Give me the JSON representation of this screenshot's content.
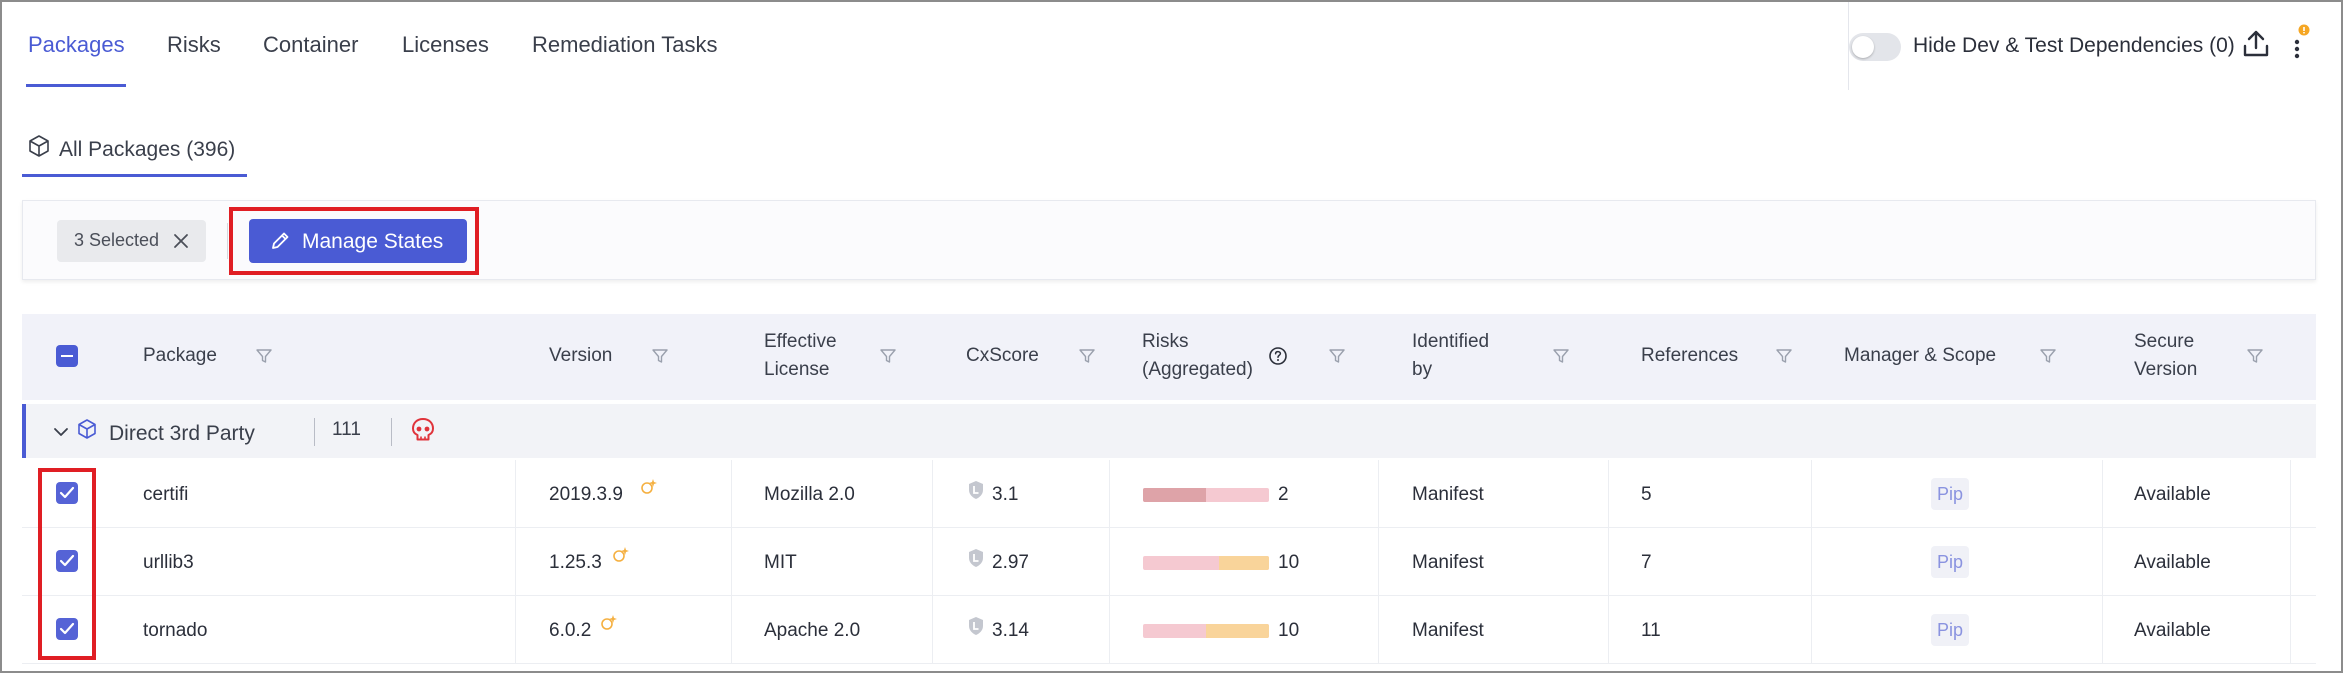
{
  "tabs": [
    "Packages",
    "Risks",
    "Container",
    "Licenses",
    "Remediation Tasks"
  ],
  "active_tab": "Packages",
  "toolbar": {
    "hide_dev_label": "Hide Dev & Test Dependencies (0)",
    "accent": "#4a5bd4",
    "notification_color": "#f5a623"
  },
  "sub_tab": {
    "label": "All Packages (396)",
    "icon": "cube-icon"
  },
  "selection": {
    "label": "3 Selected",
    "close_icon": "close-icon"
  },
  "manage_button": {
    "label": "Manage States",
    "icon": "pencil-icon"
  },
  "table": {
    "columns": [
      "Package",
      "Version",
      "Effective License",
      "CxScore",
      "Risks (Aggregated)",
      "Identified by",
      "References",
      "Manager & Scope",
      "Secure Version"
    ],
    "header_lines": {
      "package": "Package",
      "version": "Version",
      "license_1": "Effective",
      "license_2": "License",
      "cxscore": "CxScore",
      "risks_1": "Risks",
      "risks_2": "(Aggregated)",
      "identified_1": "Identified",
      "identified_2": "by",
      "references": "References",
      "manager": "Manager & Scope",
      "secure_1": "Secure",
      "secure_2": "Version"
    },
    "group": {
      "label": "Direct 3rd Party",
      "count": "111",
      "icons": [
        "chevron-down-icon",
        "cube-icon",
        "skull-icon"
      ]
    },
    "rows": [
      {
        "checked": true,
        "package": "certifi",
        "version": "2019.3.9",
        "license": "Mozilla 2.0",
        "cxscore": "3.1",
        "risk_count": "2",
        "identified_by": "Manifest",
        "references": "5",
        "manager": "Pip",
        "secure_version": "Available",
        "risk_high_fraction": 0.5,
        "risk_medium_fraction": 0.0
      },
      {
        "checked": true,
        "package": "urllib3",
        "version": "1.25.3",
        "license": "MIT",
        "cxscore": "2.97",
        "risk_count": "10",
        "identified_by": "Manifest",
        "references": "7",
        "manager": "Pip",
        "secure_version": "Available",
        "risk_high_fraction": 0.0,
        "risk_medium_fraction": 0.4
      },
      {
        "checked": true,
        "package": "tornado",
        "version": "6.0.2",
        "license": "Apache 2.0",
        "cxscore": "3.14",
        "risk_count": "10",
        "identified_by": "Manifest",
        "references": "11",
        "manager": "Pip",
        "secure_version": "Available",
        "risk_high_fraction": 0.0,
        "risk_medium_fraction": 0.5
      }
    ],
    "colors": {
      "risk_high": "#dea3a8",
      "risk_medium": "#f9d49a",
      "risk_low": "#f5c9d1",
      "skull": "#e0333b"
    }
  }
}
